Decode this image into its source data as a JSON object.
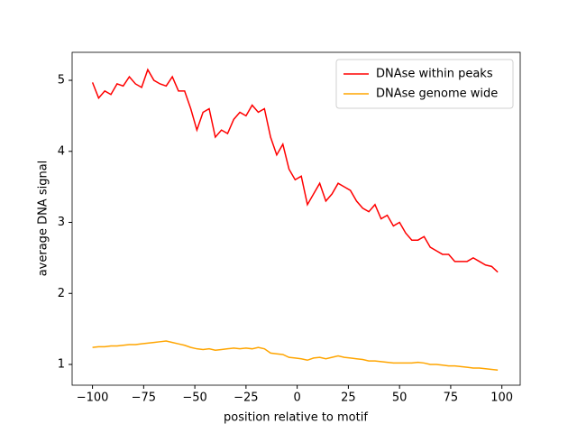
{
  "chart_data": {
    "type": "line",
    "xlabel": "position relative to motif",
    "ylabel": "average DNA signal",
    "x": [
      -100,
      -97,
      -94,
      -91,
      -88,
      -85,
      -82,
      -79,
      -76,
      -73,
      -70,
      -67,
      -64,
      -61,
      -58,
      -55,
      -52,
      -49,
      -46,
      -43,
      -40,
      -37,
      -34,
      -31,
      -28,
      -25,
      -22,
      -19,
      -16,
      -13,
      -10,
      -7,
      -4,
      -1,
      2,
      5,
      8,
      11,
      14,
      17,
      20,
      23,
      26,
      29,
      32,
      35,
      38,
      41,
      44,
      47,
      50,
      53,
      56,
      59,
      62,
      65,
      68,
      71,
      74,
      77,
      80,
      83,
      86,
      89,
      92,
      95,
      98
    ],
    "series": [
      {
        "name": "DNAse within peaks",
        "color": "#ff0000",
        "values": [
          4.97,
          4.75,
          4.85,
          4.8,
          4.95,
          4.92,
          5.05,
          4.95,
          4.9,
          5.15,
          5.0,
          4.95,
          4.92,
          5.05,
          4.85,
          4.85,
          4.6,
          4.3,
          4.55,
          4.6,
          4.2,
          4.3,
          4.25,
          4.45,
          4.55,
          4.5,
          4.65,
          4.55,
          4.6,
          4.2,
          3.95,
          4.1,
          3.75,
          3.6,
          3.65,
          3.25,
          3.4,
          3.55,
          3.3,
          3.4,
          3.55,
          3.5,
          3.45,
          3.3,
          3.2,
          3.15,
          3.25,
          3.05,
          3.1,
          2.95,
          3.0,
          2.85,
          2.75,
          2.75,
          2.8,
          2.65,
          2.6,
          2.55,
          2.55,
          2.45,
          2.45,
          2.45,
          2.5,
          2.45,
          2.4,
          2.38,
          2.3
        ]
      },
      {
        "name": "DNAse genome wide",
        "color": "#ffa500",
        "values": [
          1.24,
          1.25,
          1.25,
          1.26,
          1.26,
          1.27,
          1.28,
          1.28,
          1.29,
          1.3,
          1.31,
          1.32,
          1.33,
          1.31,
          1.29,
          1.27,
          1.24,
          1.22,
          1.21,
          1.22,
          1.2,
          1.21,
          1.22,
          1.23,
          1.22,
          1.23,
          1.22,
          1.24,
          1.22,
          1.16,
          1.15,
          1.14,
          1.1,
          1.09,
          1.08,
          1.06,
          1.09,
          1.1,
          1.08,
          1.1,
          1.12,
          1.1,
          1.09,
          1.08,
          1.07,
          1.05,
          1.05,
          1.04,
          1.03,
          1.02,
          1.02,
          1.02,
          1.02,
          1.03,
          1.02,
          1.0,
          1.0,
          0.99,
          0.98,
          0.98,
          0.97,
          0.96,
          0.95,
          0.95,
          0.94,
          0.93,
          0.92
        ]
      }
    ],
    "xlim": [
      -109.95,
      108.95
    ],
    "ylim": [
      0.708,
      5.394
    ],
    "xticks": [
      {
        "value": -100,
        "label": "−100"
      },
      {
        "value": -75,
        "label": "−75"
      },
      {
        "value": -50,
        "label": "−50"
      },
      {
        "value": -25,
        "label": "−25"
      },
      0,
      25,
      50,
      75,
      100
    ],
    "yticks": [
      1,
      2,
      3,
      4,
      5
    ],
    "legend": "upper right",
    "grid": false
  }
}
